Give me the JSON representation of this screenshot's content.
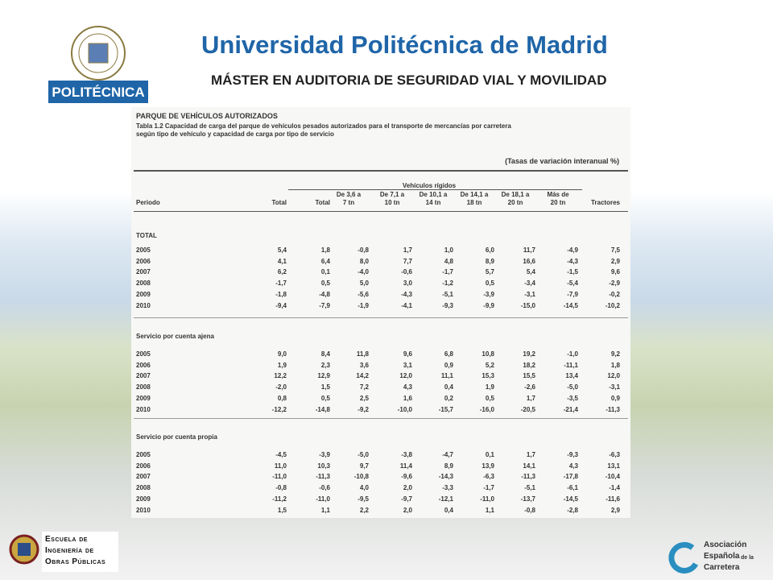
{
  "header": {
    "title": "Universidad Politécnica de Madrid",
    "subtitle": "MÁSTER EN AUDITORIA DE SEGURIDAD VIAL Y MOVILIDAD",
    "logo_text": "POLITÉCNICA"
  },
  "table": {
    "section": "PARQUE DE VEHÍCULOS AUTORIZADOS",
    "caption": [
      "Tabla 1.2  Capacidad de carga del parque de vehículos pesados autorizados para el transporte de mercancías por carretera",
      "según tipo de vehículo y capacidad de carga  por tipo de servicio"
    ],
    "note": "(Tasas de variación interanual %)",
    "group_header": "Vehículos rígidos",
    "columns": [
      [
        "Periodo"
      ],
      [
        "Total"
      ],
      [
        "Total"
      ],
      [
        "De 3,6 a",
        "7 tn"
      ],
      [
        "De 7,1 a",
        "10 tn"
      ],
      [
        "De 10,1 a",
        "14 tn"
      ],
      [
        "De 14,1 a",
        "18 tn"
      ],
      [
        "De 18,1 a",
        "20 tn"
      ],
      [
        "Más de",
        "20 tn"
      ],
      [
        "Tractores"
      ]
    ],
    "groups": [
      {
        "label": "TOTAL",
        "rows": [
          [
            "2005",
            "5,4",
            "1,8",
            "-0,8",
            "1,7",
            "1,0",
            "6,0",
            "11,7",
            "-4,9",
            "7,5"
          ],
          [
            "2006",
            "4,1",
            "6,4",
            "8,0",
            "7,7",
            "4,8",
            "8,9",
            "16,6",
            "-4,3",
            "2,9"
          ],
          [
            "2007",
            "6,2",
            "0,1",
            "-4,0",
            "-0,6",
            "-1,7",
            "5,7",
            "5,4",
            "-1,5",
            "9,6"
          ],
          [
            "2008",
            "-1,7",
            "0,5",
            "5,0",
            "3,0",
            "-1,2",
            "0,5",
            "-3,4",
            "-5,4",
            "-2,9"
          ],
          [
            "2009",
            "-1,8",
            "-4,8",
            "-5,6",
            "-4,3",
            "-5,1",
            "-3,9",
            "-3,1",
            "-7,9",
            "-0,2"
          ],
          [
            "2010",
            "-9,4",
            "-7,9",
            "-1,9",
            "-4,1",
            "-9,3",
            "-9,9",
            "-15,0",
            "-14,5",
            "-10,2"
          ]
        ]
      },
      {
        "label": "Servicio por cuenta ajena",
        "rows": [
          [
            "2005",
            "9,0",
            "8,4",
            "11,8",
            "9,6",
            "6,8",
            "10,8",
            "19,2",
            "-1,0",
            "9,2"
          ],
          [
            "2006",
            "1,9",
            "2,3",
            "3,6",
            "3,1",
            "0,9",
            "5,2",
            "18,2",
            "-11,1",
            "1,8"
          ],
          [
            "2007",
            "12,2",
            "12,9",
            "14,2",
            "12,0",
            "11,1",
            "15,3",
            "15,5",
            "13,4",
            "12,0"
          ],
          [
            "2008",
            "-2,0",
            "1,5",
            "7,2",
            "4,3",
            "0,4",
            "1,9",
            "-2,6",
            "-5,0",
            "-3,1"
          ],
          [
            "2009",
            "0,8",
            "0,5",
            "2,5",
            "1,6",
            "0,2",
            "0,5",
            "1,7",
            "-3,5",
            "0,9"
          ],
          [
            "2010",
            "-12,2",
            "-14,8",
            "-9,2",
            "-10,0",
            "-15,7",
            "-16,0",
            "-20,5",
            "-21,4",
            "-11,3"
          ]
        ]
      },
      {
        "label": "Servicio por cuenta propia",
        "rows": [
          [
            "2005",
            "-4,5",
            "-3,9",
            "-5,0",
            "-3,8",
            "-4,7",
            "0,1",
            "1,7",
            "-9,3",
            "-6,3"
          ],
          [
            "2006",
            "11,0",
            "10,3",
            "9,7",
            "11,4",
            "8,9",
            "13,9",
            "14,1",
            "4,3",
            "13,1"
          ],
          [
            "2007",
            "-11,0",
            "-11,3",
            "-10,8",
            "-9,6",
            "-14,3",
            "-6,3",
            "-11,3",
            "-17,8",
            "-10,4"
          ],
          [
            "2008",
            "-0,8",
            "-0,6",
            "4,0",
            "2,0",
            "-3,3",
            "-1,7",
            "-5,1",
            "-6,1",
            "-1,4"
          ],
          [
            "2009",
            "-11,2",
            "-11,0",
            "-9,5",
            "-9,7",
            "-12,1",
            "-11,0",
            "-13,7",
            "-14,5",
            "-11,6"
          ],
          [
            "2010",
            "1,5",
            "1,1",
            "2,2",
            "2,0",
            "0,4",
            "1,1",
            "-0,8",
            "-2,8",
            "2,9"
          ]
        ]
      }
    ]
  },
  "footer": {
    "school": [
      "Escuela de",
      "Ingeniería de",
      "Obras Públicas"
    ],
    "association": [
      "Asociación",
      "Española",
      "de la",
      "Carretera"
    ]
  }
}
